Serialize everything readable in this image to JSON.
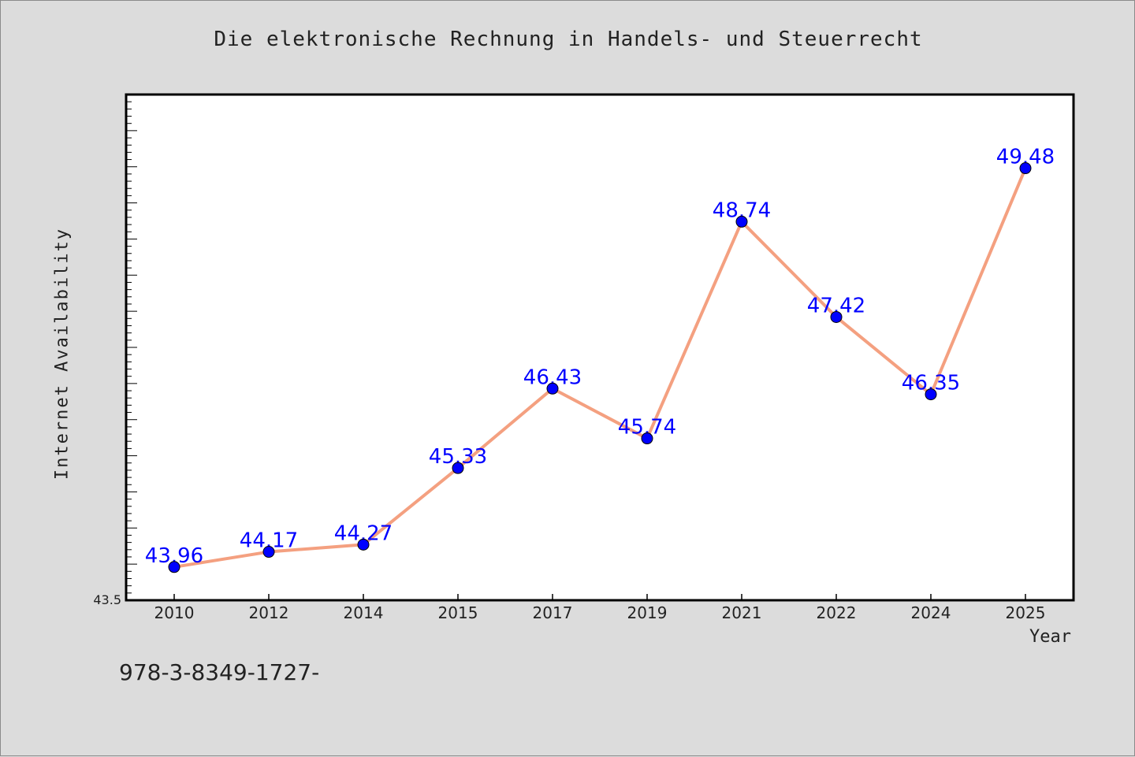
{
  "chart_data": {
    "type": "line",
    "title": "Die elektronische Rechnung in Handels- und Steuerrecht",
    "xlabel": "Year",
    "ylabel": "Internet Availability",
    "categories": [
      "2010",
      "2012",
      "2014",
      "2015",
      "2017",
      "2019",
      "2021",
      "2022",
      "2024",
      "2025"
    ],
    "series": [
      {
        "values": [
          43.96,
          44.17,
          44.27,
          45.33,
          46.43,
          45.74,
          48.74,
          47.42,
          46.35,
          49.48
        ],
        "data_labels": [
          "43.96",
          "44.17",
          "44.27",
          "45.33",
          "46.43",
          "45.74",
          "48.74",
          "47.42",
          "46.35",
          "49.48"
        ]
      }
    ],
    "ylim": [
      43.5,
      50.5
    ],
    "y_min_label": "43.5",
    "grid": false,
    "line_color": "#f4a080",
    "marker_color": "#0000ff",
    "label_color": "#0000ff"
  },
  "footnote": "978-3-8349-1727-"
}
